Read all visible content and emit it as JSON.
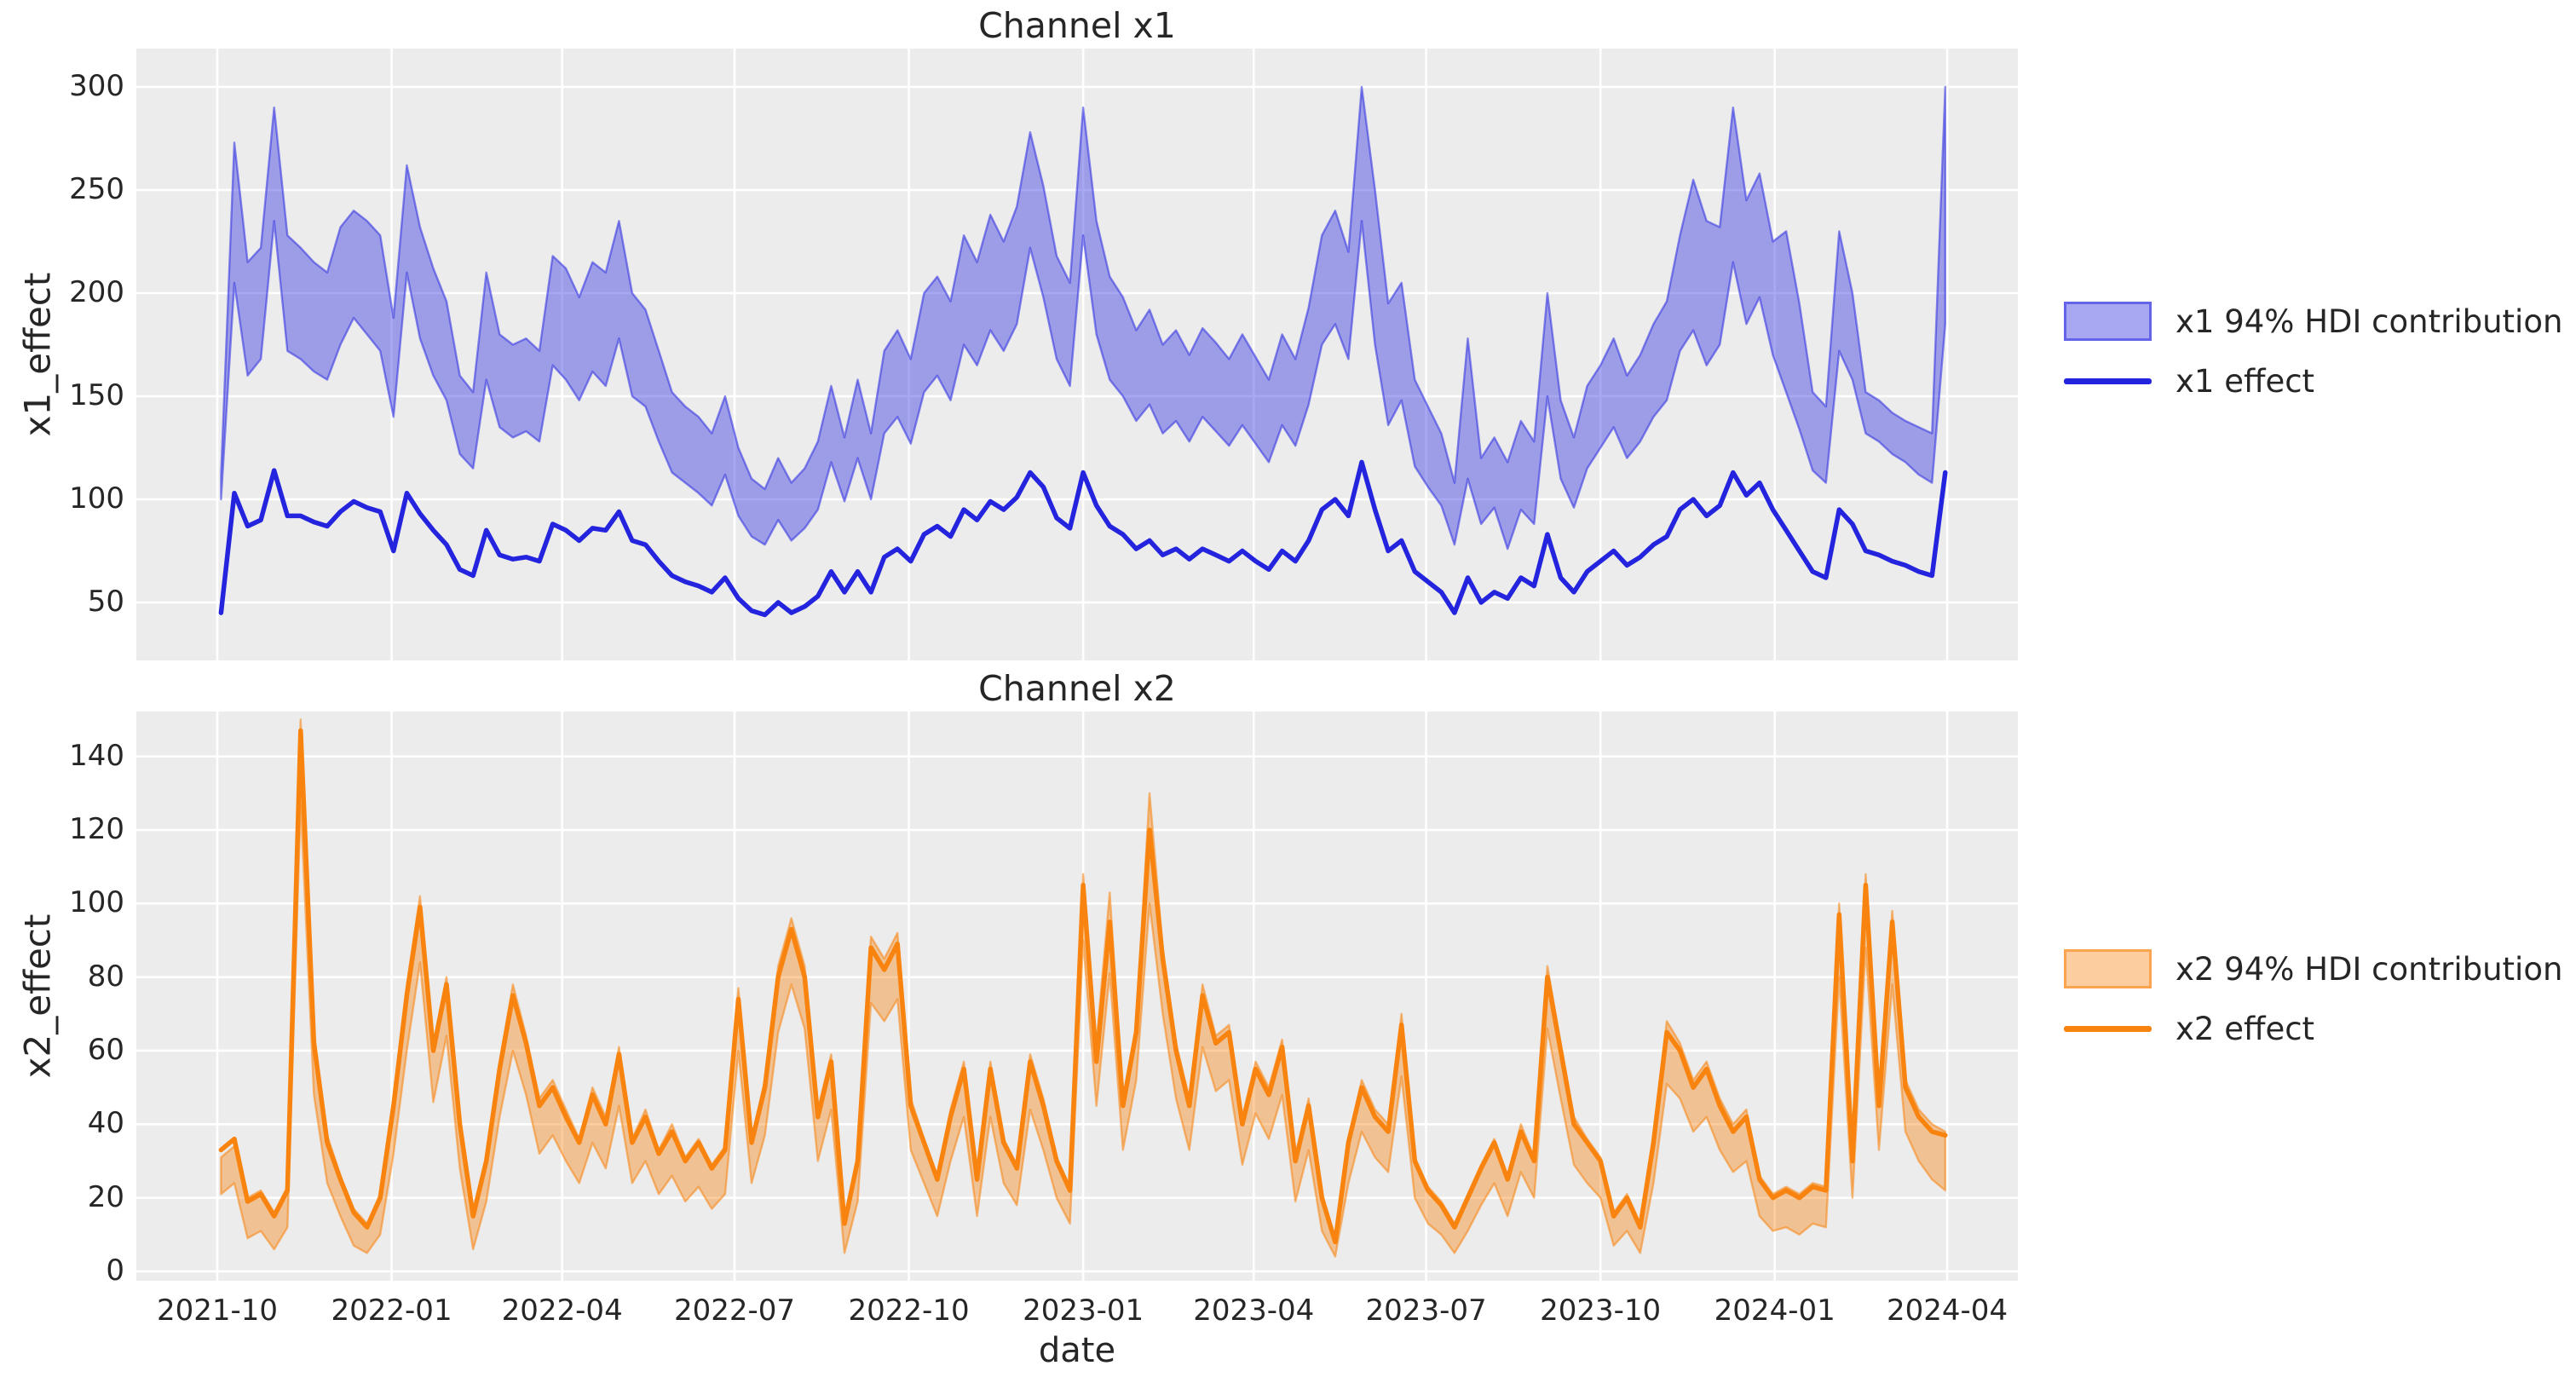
{
  "colors": {
    "figure_bg": "#FFFFFF",
    "plot_bg": "#ECECEC",
    "grid": "#FFFFFF",
    "text": "#262626",
    "x1_line": "#2424DE",
    "x1_band_fill": "rgba(45,45,225,0.42)",
    "x1_band_edge": "rgba(45,45,225,0.55)",
    "x2_line": "#F8830E",
    "x2_band_fill": "rgba(248,131,14,0.40)",
    "x2_band_edge": "rgba(248,131,14,0.55)"
  },
  "x_axis": {
    "label": "date",
    "ticks": [
      "2021-10",
      "2022-01",
      "2022-04",
      "2022-07",
      "2022-10",
      "2023-01",
      "2023-04",
      "2023-07",
      "2023-10",
      "2024-01",
      "2024-04"
    ]
  },
  "chart_data": {
    "type": "area+line",
    "start_date": "2021-10-03",
    "interval_days": 7,
    "n_points": 131,
    "charts": [
      {
        "name": "x1",
        "title": "Channel x1",
        "ylabel": "x1_effect",
        "legend": [
          {
            "label": "x1 94% HDI contribution",
            "kind": "band"
          },
          {
            "label": "x1 effect",
            "kind": "line"
          }
        ],
        "y_ticks": [
          50,
          100,
          150,
          200,
          250,
          300
        ],
        "ylim": [
          21.9,
          318.6
        ],
        "effect": [
          45,
          103,
          87,
          90,
          114,
          92,
          92,
          89,
          87,
          94,
          99,
          96,
          94,
          75,
          103,
          93,
          85,
          78,
          66,
          63,
          85,
          73,
          71,
          72,
          70,
          88,
          85,
          80,
          86,
          85,
          94,
          80,
          78,
          70,
          63,
          60,
          58,
          55,
          62,
          52,
          46,
          44,
          50,
          45,
          48,
          53,
          65,
          55,
          65,
          55,
          72,
          76,
          70,
          83,
          87,
          82,
          95,
          90,
          99,
          95,
          101,
          113,
          106,
          91,
          86,
          113,
          97,
          87,
          83,
          76,
          80,
          73,
          76,
          71,
          76,
          73,
          70,
          75,
          70,
          66,
          75,
          70,
          80,
          95,
          100,
          92,
          118,
          95,
          75,
          80,
          65,
          60,
          55,
          45,
          62,
          50,
          55,
          52,
          62,
          58,
          83,
          62,
          55,
          65,
          70,
          75,
          68,
          72,
          78,
          82,
          95,
          100,
          92,
          97,
          113,
          102,
          108,
          95,
          85,
          75,
          65,
          62,
          95,
          88,
          75,
          73,
          70,
          68,
          65,
          63,
          113
        ],
        "hdi_lower": [
          100,
          205,
          160,
          168,
          235,
          172,
          168,
          162,
          158,
          175,
          188,
          180,
          172,
          140,
          210,
          178,
          160,
          148,
          122,
          115,
          158,
          135,
          130,
          133,
          128,
          165,
          158,
          148,
          162,
          155,
          178,
          150,
          145,
          128,
          113,
          108,
          103,
          97,
          112,
          92,
          82,
          78,
          90,
          80,
          86,
          95,
          118,
          99,
          120,
          100,
          132,
          140,
          127,
          152,
          160,
          148,
          175,
          165,
          182,
          172,
          185,
          222,
          198,
          168,
          155,
          228,
          180,
          158,
          150,
          138,
          146,
          132,
          138,
          128,
          140,
          133,
          126,
          136,
          127,
          118,
          136,
          126,
          146,
          175,
          185,
          168,
          235,
          175,
          136,
          148,
          116,
          106,
          97,
          78,
          110,
          88,
          96,
          76,
          95,
          88,
          150,
          110,
          96,
          115,
          125,
          135,
          120,
          128,
          140,
          148,
          172,
          182,
          165,
          175,
          215,
          185,
          198,
          170,
          152,
          134,
          114,
          108,
          172,
          158,
          132,
          128,
          122,
          118,
          112,
          108,
          185
        ],
        "hdi_upper": [
          112,
          273,
          215,
          222,
          290,
          228,
          222,
          215,
          210,
          232,
          240,
          235,
          228,
          188,
          262,
          232,
          212,
          196,
          160,
          152,
          210,
          180,
          175,
          178,
          172,
          218,
          212,
          198,
          215,
          210,
          235,
          200,
          192,
          172,
          152,
          145,
          140,
          132,
          150,
          125,
          110,
          105,
          120,
          108,
          115,
          128,
          155,
          130,
          158,
          132,
          172,
          182,
          168,
          200,
          208,
          196,
          228,
          215,
          238,
          225,
          242,
          278,
          252,
          218,
          205,
          290,
          235,
          208,
          198,
          182,
          192,
          175,
          182,
          170,
          183,
          176,
          168,
          180,
          169,
          158,
          180,
          168,
          193,
          228,
          240,
          220,
          300,
          250,
          195,
          205,
          158,
          145,
          132,
          108,
          178,
          120,
          130,
          118,
          138,
          128,
          200,
          148,
          130,
          155,
          165,
          178,
          160,
          170,
          185,
          196,
          228,
          255,
          235,
          232,
          290,
          245,
          258,
          225,
          230,
          195,
          152,
          145,
          230,
          200,
          152,
          148,
          142,
          138,
          135,
          132,
          300
        ]
      },
      {
        "name": "x2",
        "title": "Channel x2",
        "ylabel": "x2_effect",
        "legend": [
          {
            "label": "x2 94% HDI contribution",
            "kind": "band"
          },
          {
            "label": "x2 effect",
            "kind": "line"
          }
        ],
        "y_ticks": [
          0,
          20,
          40,
          60,
          80,
          100,
          120,
          140
        ],
        "ylim": [
          -2.5,
          152.2
        ],
        "effect": [
          33,
          36,
          19,
          21,
          15,
          22,
          147,
          62,
          35,
          25,
          16,
          12,
          20,
          45,
          75,
          99,
          60,
          78,
          40,
          15,
          30,
          55,
          75,
          62,
          45,
          50,
          42,
          35,
          48,
          40,
          59,
          35,
          42,
          32,
          38,
          30,
          35,
          28,
          33,
          74,
          35,
          50,
          80,
          93,
          80,
          42,
          57,
          13,
          30,
          88,
          82,
          89,
          45,
          35,
          25,
          42,
          55,
          25,
          55,
          35,
          28,
          57,
          45,
          30,
          22,
          105,
          57,
          95,
          45,
          65,
          120,
          85,
          60,
          45,
          75,
          62,
          65,
          40,
          55,
          48,
          61,
          30,
          45,
          20,
          8,
          35,
          50,
          42,
          38,
          67,
          30,
          22,
          18,
          12,
          20,
          28,
          35,
          25,
          38,
          30,
          80,
          60,
          40,
          35,
          30,
          15,
          20,
          12,
          35,
          65,
          60,
          50,
          55,
          45,
          38,
          42,
          25,
          20,
          22,
          20,
          23,
          22,
          97,
          30,
          105,
          45,
          95,
          50,
          42,
          38,
          37
        ],
        "hdi_lower": [
          21,
          24,
          9,
          11,
          6,
          12,
          127,
          48,
          24,
          15,
          7,
          5,
          10,
          32,
          60,
          84,
          46,
          64,
          28,
          6,
          19,
          42,
          60,
          48,
          32,
          37,
          30,
          24,
          35,
          28,
          45,
          24,
          30,
          21,
          26,
          19,
          23,
          17,
          21,
          60,
          24,
          37,
          65,
          78,
          66,
          30,
          44,
          5,
          19,
          73,
          68,
          74,
          33,
          24,
          15,
          30,
          42,
          15,
          42,
          24,
          18,
          44,
          33,
          20,
          13,
          90,
          45,
          81,
          33,
          52,
          100,
          70,
          47,
          33,
          61,
          49,
          52,
          29,
          43,
          36,
          48,
          19,
          33,
          11,
          4,
          24,
          38,
          31,
          27,
          53,
          20,
          13,
          10,
          5,
          11,
          18,
          24,
          15,
          27,
          20,
          66,
          47,
          29,
          24,
          20,
          7,
          11,
          5,
          24,
          51,
          47,
          38,
          42,
          33,
          27,
          30,
          15,
          11,
          12,
          10,
          13,
          12,
          80,
          20,
          88,
          33,
          78,
          38,
          30,
          25,
          22
        ],
        "hdi_upper": [
          31,
          34,
          20,
          22,
          16,
          23,
          150,
          65,
          37,
          26,
          17,
          13,
          21,
          47,
          78,
          102,
          62,
          80,
          42,
          16,
          31,
          57,
          78,
          64,
          47,
          52,
          44,
          36,
          50,
          42,
          61,
          36,
          44,
          33,
          40,
          31,
          36,
          29,
          34,
          77,
          36,
          52,
          83,
          96,
          83,
          44,
          59,
          14,
          31,
          91,
          85,
          92,
          47,
          36,
          26,
          44,
          57,
          26,
          57,
          36,
          29,
          59,
          47,
          31,
          23,
          108,
          62,
          103,
          47,
          67,
          130,
          88,
          62,
          47,
          78,
          64,
          67,
          42,
          57,
          50,
          63,
          31,
          47,
          21,
          9,
          36,
          52,
          44,
          40,
          70,
          31,
          23,
          19,
          13,
          21,
          29,
          36,
          26,
          40,
          31,
          83,
          62,
          42,
          36,
          31,
          16,
          21,
          13,
          36,
          68,
          62,
          52,
          57,
          47,
          40,
          44,
          26,
          21,
          23,
          21,
          24,
          23,
          100,
          31,
          108,
          47,
          98,
          52,
          44,
          40,
          38
        ]
      }
    ]
  }
}
